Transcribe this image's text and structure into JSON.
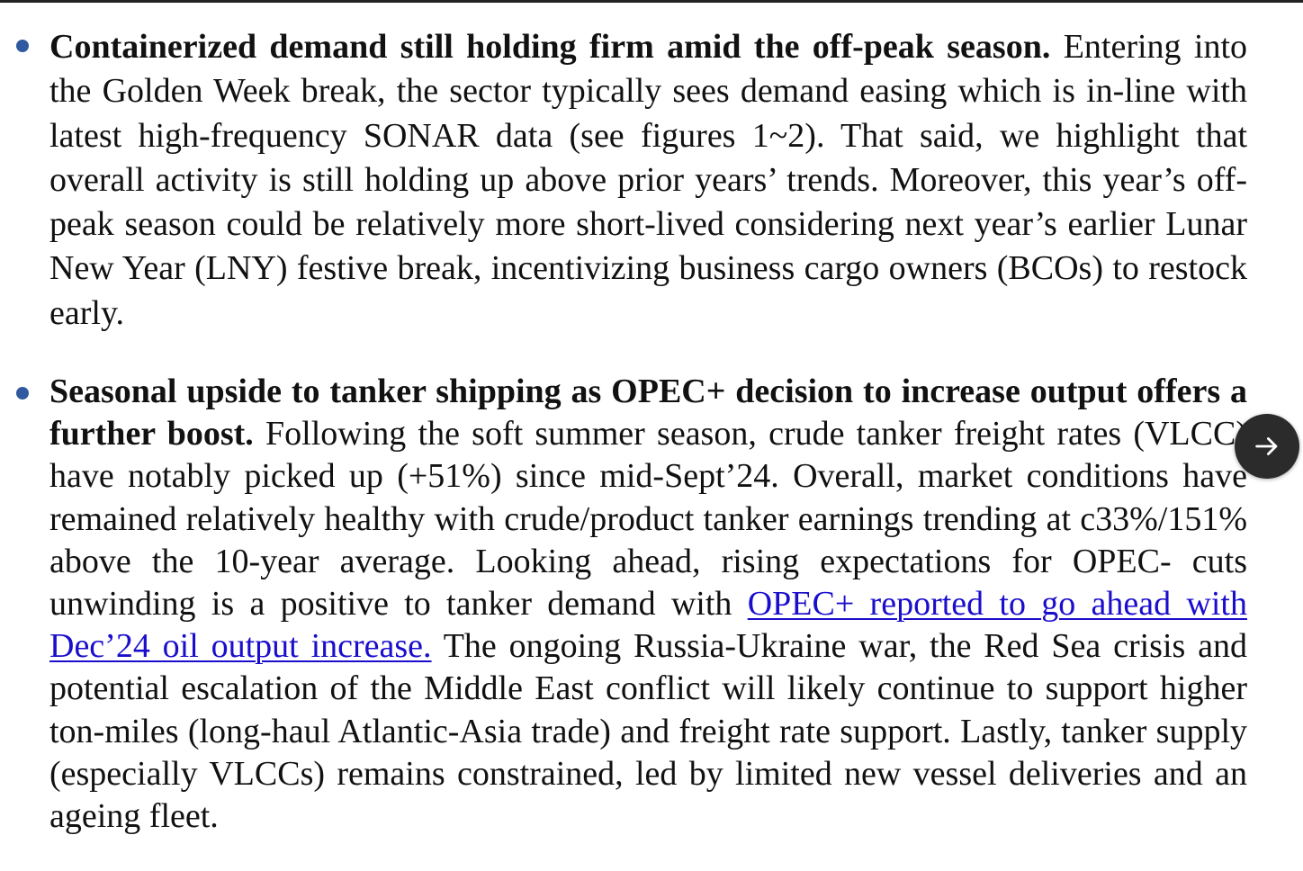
{
  "bullets": [
    {
      "lead": "Containerized demand still holding firm amid the off-peak season.",
      "body": "Entering into the Golden Week break, the sector typically sees demand easing which is in-line with latest high-frequency SONAR data (see figures 1~2). That said, we highlight that overall activity is still holding up above prior years’ trends. Moreover, this year’s off-peak season could be relatively more short-lived considering next year’s earlier Lunar New Year (LNY) festive break, incentivizing business cargo owners (BCOs) to restock early."
    },
    {
      "lead": "Seasonal upside to tanker shipping as OPEC+ decision to increase output offers a further boost.",
      "body_before_link": "Following the soft summer season, crude tanker freight rates (VLCC) have notably picked up (+51%) since mid-Sept’24. Overall, market conditions have remained relatively healthy with crude/product tanker earnings trending at c33%/151% above the 10-year average. Looking ahead, rising expectations for OPEC- cuts unwinding is a positive to tanker demand with",
      "link_text": "OPEC+ reported to go ahead with Dec’24 oil output increase.",
      "body_after_link": "The ongoing Russia-Ukraine war, the Red Sea crisis and potential escalation of the Middle East conflict will likely continue to support higher ton-miles (long-haul Atlantic-Asia trade) and freight rate support. Lastly, tanker supply (especially VLCCs) remains constrained, led by limited new vessel deliveries and an ageing fleet."
    }
  ],
  "next_button": {
    "icon": "arrow-right-icon"
  },
  "colors": {
    "bullet": "#2f5aa0",
    "link": "#1a0dcc",
    "text": "#111111",
    "button_bg": "#2b2b2b"
  }
}
